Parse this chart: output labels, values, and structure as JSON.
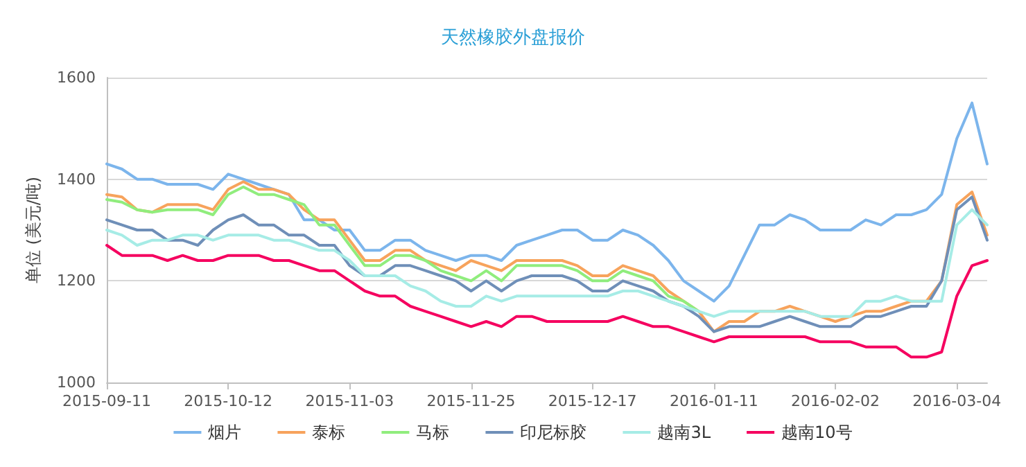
{
  "chart_data": {
    "type": "line",
    "title": "天然橡胶外盘报价",
    "ylabel": "单位 (美元/吨)",
    "categories": [
      "2015-09-11",
      null,
      null,
      null,
      null,
      null,
      null,
      null,
      "2015-10-12",
      null,
      null,
      null,
      null,
      null,
      null,
      null,
      "2015-11-03",
      null,
      null,
      null,
      null,
      null,
      null,
      null,
      "2015-11-25",
      null,
      null,
      null,
      null,
      null,
      null,
      null,
      "2015-12-17",
      null,
      null,
      null,
      null,
      null,
      null,
      null,
      "2016-01-11",
      null,
      null,
      null,
      null,
      null,
      null,
      null,
      "2016-02-02",
      null,
      null,
      null,
      null,
      null,
      null,
      null,
      "2016-03-04",
      null,
      null
    ],
    "series": [
      {
        "name": "烟片",
        "color": "#7cb5ec",
        "values": [
          1430,
          1420,
          1400,
          1400,
          1390,
          1390,
          1390,
          1380,
          1410,
          1400,
          1390,
          1380,
          1370,
          1320,
          1320,
          1300,
          1300,
          1260,
          1260,
          1280,
          1280,
          1260,
          1250,
          1240,
          1250,
          1250,
          1240,
          1270,
          1280,
          1290,
          1300,
          1300,
          1280,
          1280,
          1300,
          1290,
          1270,
          1240,
          1200,
          1180,
          1160,
          1190,
          1250,
          1310,
          1310,
          1330,
          1320,
          1300,
          1300,
          1300,
          1320,
          1310,
          1330,
          1330,
          1340,
          1370,
          1480,
          1550,
          1430
        ]
      },
      {
        "name": "泰标",
        "color": "#f7a35c",
        "values": [
          1370,
          1365,
          1340,
          1335,
          1350,
          1350,
          1350,
          1340,
          1380,
          1395,
          1380,
          1380,
          1370,
          1340,
          1320,
          1320,
          1280,
          1240,
          1240,
          1260,
          1260,
          1240,
          1230,
          1220,
          1240,
          1230,
          1220,
          1240,
          1240,
          1240,
          1240,
          1230,
          1210,
          1210,
          1230,
          1220,
          1210,
          1180,
          1160,
          1140,
          1100,
          1120,
          1120,
          1140,
          1140,
          1150,
          1140,
          1130,
          1120,
          1130,
          1140,
          1140,
          1150,
          1160,
          1160,
          1200,
          1350,
          1375,
          1290
        ]
      },
      {
        "name": "马标",
        "color": "#90ed7d",
        "values": [
          1360,
          1355,
          1340,
          1335,
          1340,
          1340,
          1340,
          1330,
          1370,
          1385,
          1370,
          1370,
          1360,
          1350,
          1310,
          1310,
          1270,
          1230,
          1230,
          1250,
          1250,
          1240,
          1220,
          1210,
          1200,
          1220,
          1200,
          1230,
          1230,
          1230,
          1230,
          1220,
          1200,
          1200,
          1220,
          1210,
          1200,
          1170,
          1160,
          1140,
          null,
          null,
          null,
          null,
          null,
          null,
          null,
          null,
          null,
          null,
          null,
          null,
          null,
          null,
          null,
          null,
          null,
          null,
          null
        ]
      },
      {
        "name": "印尼标胶",
        "color": "#6f8fb8",
        "values": [
          1320,
          1310,
          1300,
          1300,
          1280,
          1280,
          1270,
          1300,
          1320,
          1330,
          1310,
          1310,
          1290,
          1290,
          1270,
          1270,
          1230,
          1210,
          1210,
          1230,
          1230,
          1220,
          1210,
          1200,
          1180,
          1200,
          1180,
          1200,
          1210,
          1210,
          1210,
          1200,
          1180,
          1180,
          1200,
          1190,
          1180,
          1160,
          1150,
          1130,
          1100,
          1110,
          1110,
          1110,
          1120,
          1130,
          1120,
          1110,
          1110,
          1110,
          1130,
          1130,
          1140,
          1150,
          1150,
          1200,
          1340,
          1365,
          1280
        ]
      },
      {
        "name": "越南3L",
        "color": "#a6ece6",
        "values": [
          1300,
          1290,
          1270,
          1280,
          1280,
          1290,
          1290,
          1280,
          1290,
          1290,
          1290,
          1280,
          1280,
          1270,
          1260,
          1260,
          1240,
          1210,
          1210,
          1210,
          1190,
          1180,
          1160,
          1150,
          1150,
          1170,
          1160,
          1170,
          1170,
          1170,
          1170,
          1170,
          1170,
          1170,
          1180,
          1180,
          1170,
          1160,
          1150,
          1140,
          1130,
          1140,
          1140,
          1140,
          1140,
          1140,
          1140,
          1130,
          1130,
          1130,
          1160,
          1160,
          1170,
          1160,
          1160,
          1160,
          1310,
          1340,
          1310
        ]
      },
      {
        "name": "越南10号",
        "color": "#f5005f",
        "values": [
          1270,
          1250,
          1250,
          1250,
          1240,
          1250,
          1240,
          1240,
          1250,
          1250,
          1250,
          1240,
          1240,
          1230,
          1220,
          1220,
          1200,
          1180,
          1170,
          1170,
          1150,
          1140,
          1130,
          1120,
          1110,
          1120,
          1110,
          1130,
          1130,
          1120,
          1120,
          1120,
          1120,
          1120,
          1130,
          1120,
          1110,
          1110,
          1100,
          1090,
          1080,
          1090,
          1090,
          1090,
          1090,
          1090,
          1090,
          1080,
          1080,
          1080,
          1070,
          1070,
          1070,
          1050,
          1050,
          1060,
          1170,
          1230,
          1240
        ]
      }
    ],
    "ylim": [
      1000,
      1600
    ],
    "yticks": [
      1000,
      1200,
      1400,
      1600
    ],
    "grid": "y",
    "legend": "bottom",
    "marker": "none",
    "line_style": "solid"
  }
}
